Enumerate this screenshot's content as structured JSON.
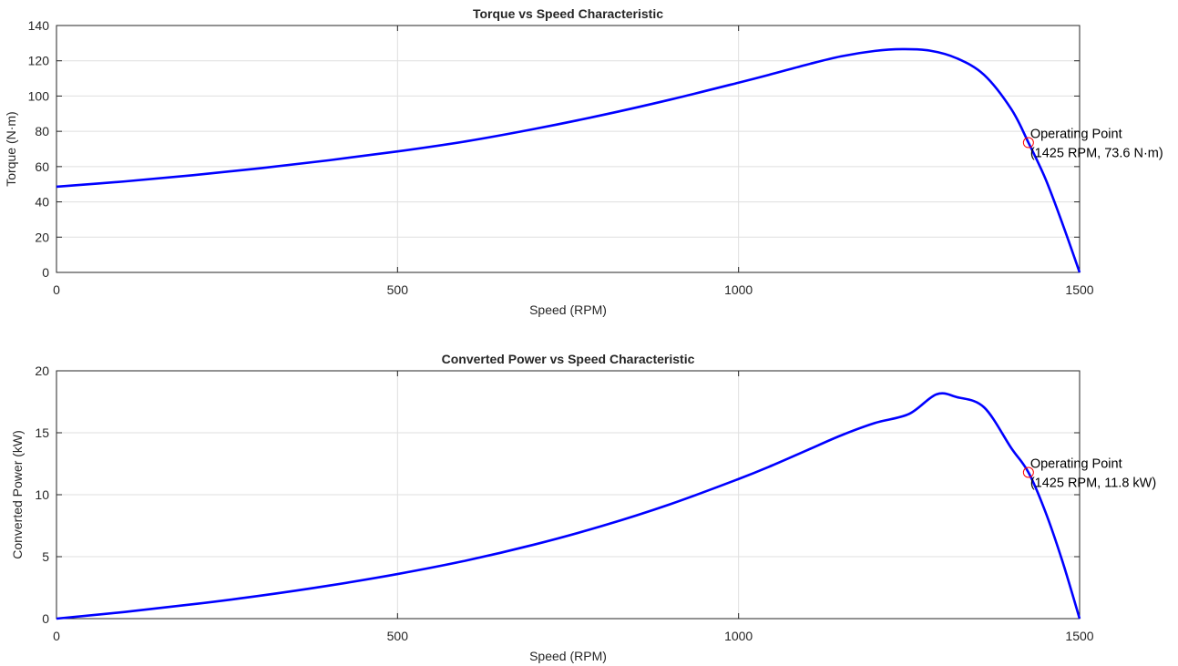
{
  "chart_data": [
    {
      "type": "line",
      "title": "Torque vs Speed Characteristic",
      "xlabel": "Speed (RPM)",
      "ylabel": "Torque (N·m)",
      "xlim": [
        0,
        1500
      ],
      "ylim": [
        0,
        140
      ],
      "xticks": [
        0,
        500,
        1000,
        1500
      ],
      "yticks": [
        0,
        20,
        40,
        60,
        80,
        100,
        120,
        140
      ],
      "grid": true,
      "series": [
        {
          "color": "#0000ff",
          "x": [
            0,
            100,
            200,
            300,
            400,
            500,
            600,
            700,
            800,
            900,
            1000,
            1050,
            1100,
            1150,
            1200,
            1240,
            1280,
            1320,
            1360,
            1400,
            1425,
            1450,
            1475,
            1500
          ],
          "y": [
            48.6,
            51.6,
            55.1,
            59.1,
            63.6,
            68.6,
            74.3,
            81.3,
            89.2,
            98.0,
            107.6,
            112.6,
            117.8,
            122.5,
            125.6,
            126.6,
            125.8,
            121.4,
            112.0,
            92.5,
            73.6,
            53.0,
            27.5,
            0
          ]
        }
      ],
      "annotation": {
        "x": 1425,
        "y": 73.6,
        "marker_color": "#ff0000",
        "lines": [
          "Operating Point",
          "(1425 RPM, 73.6 N·m)"
        ]
      }
    },
    {
      "type": "line",
      "title": "Converted Power vs Speed Characteristic",
      "xlabel": "Speed (RPM)",
      "ylabel": "Converted Power (kW)",
      "xlim": [
        0,
        1500
      ],
      "ylim": [
        0,
        20
      ],
      "xticks": [
        0,
        500,
        1000,
        1500
      ],
      "yticks": [
        0,
        5,
        10,
        15,
        20
      ],
      "grid": true,
      "series": [
        {
          "color": "#0000ff",
          "x": [
            0,
            100,
            200,
            300,
            400,
            500,
            600,
            700,
            800,
            900,
            1000,
            1050,
            1100,
            1150,
            1200,
            1250,
            1290,
            1320,
            1360,
            1400,
            1425,
            1450,
            1475,
            1500
          ],
          "y": [
            0,
            0.54,
            1.16,
            1.86,
            2.67,
            3.6,
            4.68,
            5.97,
            7.48,
            9.24,
            11.27,
            12.38,
            13.58,
            14.78,
            15.79,
            16.52,
            18.1,
            17.88,
            17.05,
            13.75,
            11.8,
            8.6,
            4.6,
            0
          ]
        }
      ],
      "annotation": {
        "x": 1425,
        "y": 11.8,
        "marker_color": "#ff0000",
        "lines": [
          "Operating Point",
          "(1425 RPM, 11.8 kW)"
        ]
      }
    }
  ]
}
